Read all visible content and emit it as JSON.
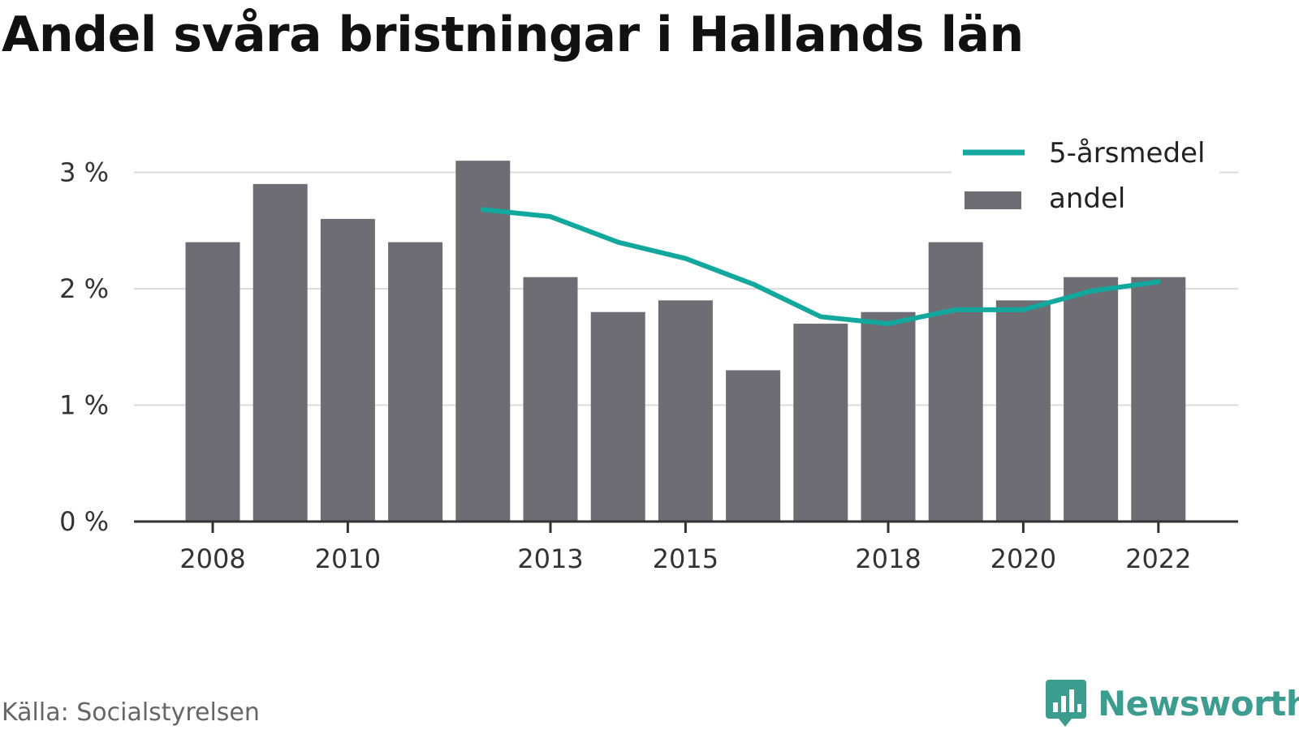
{
  "title": "Andel svåra bristningar i Hallands län",
  "source": "Källa: Socialstyrelsen",
  "brand": {
    "name": "Newsworthy",
    "icon": "newsworthy-logo-icon",
    "color": "#3c9c8f"
  },
  "chart_data": {
    "type": "bar",
    "title": "Andel svåra bristningar i Hallands län",
    "xlabel": "",
    "ylabel": "",
    "x": [
      2008,
      2009,
      2010,
      2011,
      2012,
      2013,
      2014,
      2015,
      2016,
      2017,
      2018,
      2019,
      2020,
      2021,
      2022
    ],
    "x_ticks": [
      "2008",
      "2010",
      "2013",
      "2015",
      "2018",
      "2020",
      "2022"
    ],
    "y_ticks": [
      "0 %",
      "1 %",
      "2 %",
      "3 %"
    ],
    "ylim": [
      0,
      3.3
    ],
    "grid": true,
    "legend_position": "top-right",
    "series": [
      {
        "name": "andel",
        "kind": "bar",
        "color": "#6e6d74",
        "values": [
          2.4,
          2.9,
          2.6,
          2.4,
          3.1,
          2.1,
          1.8,
          1.9,
          1.3,
          1.7,
          1.8,
          2.4,
          1.9,
          2.1,
          2.1
        ]
      },
      {
        "name": "5-årsmedel",
        "kind": "line",
        "color": "#13a89e",
        "values": [
          null,
          null,
          null,
          null,
          2.68,
          2.62,
          2.4,
          2.26,
          2.04,
          1.76,
          1.7,
          1.82,
          1.82,
          1.98,
          2.06
        ]
      }
    ]
  }
}
